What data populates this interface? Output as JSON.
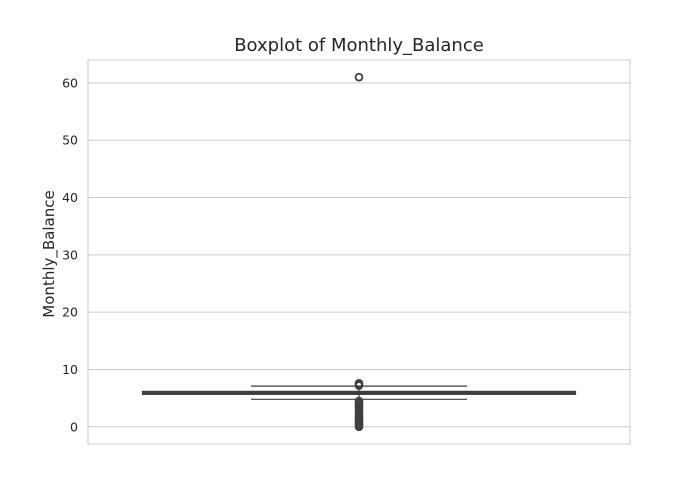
{
  "chart_data": {
    "type": "box",
    "title": "Boxplot of Monthly_Balance",
    "xlabel": "",
    "ylabel": "Monthly_Balance",
    "ylim": [
      -3,
      64
    ],
    "yticks": [
      0,
      10,
      20,
      30,
      40,
      50,
      60
    ],
    "grid": true,
    "series": [
      {
        "min": 4.8,
        "q1": 5.75,
        "median": 5.95,
        "q3": 6.1,
        "max": 7.1,
        "outliers": [
          0.0,
          0.3,
          0.6,
          0.9,
          1.2,
          1.5,
          1.8,
          2.1,
          2.4,
          2.7,
          3.0,
          3.3,
          3.6,
          3.9,
          4.2,
          4.5,
          7.2,
          7.4,
          7.6,
          61.0
        ]
      }
    ],
    "colors": {
      "box_face": "#4c72b0",
      "box_edge": "#3f3f3f",
      "grid": "#cccccc",
      "spine": "#cccccc"
    }
  }
}
